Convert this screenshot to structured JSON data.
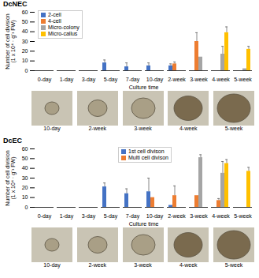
{
  "chart_data": [
    {
      "type": "bar",
      "title": "DcNEC",
      "categories": [
        "0-day",
        "1-day",
        "3-day",
        "5-day",
        "7-day",
        "10-day",
        "2-week",
        "3-week",
        "4-week",
        "5-week"
      ],
      "y_label": "Number of cell division\n(1 x 10⁴ · g⁻¹ FW)",
      "x_label": "Culture time",
      "ylim": [
        0,
        60
      ],
      "yticks": [
        0,
        10,
        20,
        30,
        40,
        50,
        60
      ],
      "grid": false,
      "legend": "top-left",
      "series": [
        {
          "name": "2-cell",
          "color": "#4472c4",
          "values": [
            0,
            0,
            0,
            8,
            4,
            5,
            5,
            0,
            0,
            0
          ],
          "errors": [
            0,
            0,
            0,
            3,
            4,
            3,
            2,
            0,
            0,
            0
          ]
        },
        {
          "name": "4-cell",
          "color": "#ed7d31",
          "values": [
            0,
            0,
            0,
            0,
            0,
            0,
            7,
            30,
            0,
            0
          ],
          "errors": [
            0,
            0,
            0,
            0,
            0,
            0,
            2,
            9,
            0,
            0
          ]
        },
        {
          "name": "Micro-colony",
          "color": "#a5a5a5",
          "values": [
            0,
            0,
            0,
            0,
            0,
            0,
            0,
            14,
            17,
            2
          ],
          "errors": [
            0,
            0,
            0,
            0,
            0,
            0,
            0,
            0,
            8,
            0
          ]
        },
        {
          "name": "Micro-callus",
          "color": "#ffc000",
          "values": [
            0,
            0,
            0,
            0,
            0,
            0,
            0,
            0,
            39,
            22
          ],
          "errors": [
            0,
            0,
            0,
            0,
            0,
            0,
            0,
            0,
            6,
            3
          ]
        }
      ],
      "annotations": [
        "10-day",
        "2-week",
        "3-week",
        "4-week",
        "5-week"
      ]
    },
    {
      "type": "bar",
      "title": "DcEC",
      "categories": [
        "0-day",
        "1-day",
        "3-day",
        "5-day",
        "7-day",
        "10-day",
        "2-week",
        "3-week",
        "4-week",
        "5-week"
      ],
      "y_label": "Number of cell division\n(1 x 10⁴ · g⁻¹ FW)",
      "x_label": "Culture time",
      "ylim": [
        0,
        60
      ],
      "yticks": [
        0,
        10,
        20,
        30,
        40,
        50,
        60
      ],
      "grid": false,
      "legend": "top-right",
      "series": [
        {
          "name": "1st cell divison",
          "color": "#4472c4",
          "values": [
            0,
            0,
            0,
            21,
            14,
            16,
            2,
            0,
            0,
            0
          ],
          "errors": [
            0,
            0,
            0,
            4,
            5,
            14,
            0,
            0,
            0,
            0
          ]
        },
        {
          "name": "Multi cell divison",
          "color": "#ed7d31",
          "values": [
            0,
            0,
            0,
            0,
            0,
            10,
            12,
            12,
            7,
            0
          ],
          "errors": [
            0,
            0,
            0,
            0,
            0,
            0,
            10,
            0,
            2,
            0
          ]
        },
        {
          "color": "#a5a5a5",
          "values": [
            0,
            0,
            0,
            0,
            0,
            0,
            0,
            51,
            35,
            0
          ],
          "errors": [
            0,
            0,
            0,
            0,
            0,
            0,
            0,
            3,
            12,
            0
          ]
        },
        {
          "color": "#ffc000",
          "values": [
            0,
            0,
            0,
            0,
            0,
            0,
            0,
            0,
            45,
            37
          ],
          "errors": [
            0,
            0,
            0,
            0,
            0,
            0,
            0,
            0,
            4,
            4
          ]
        }
      ],
      "annotations": [
        "10-day",
        "2-week",
        "3-week",
        "4-week",
        "5-week"
      ]
    }
  ]
}
